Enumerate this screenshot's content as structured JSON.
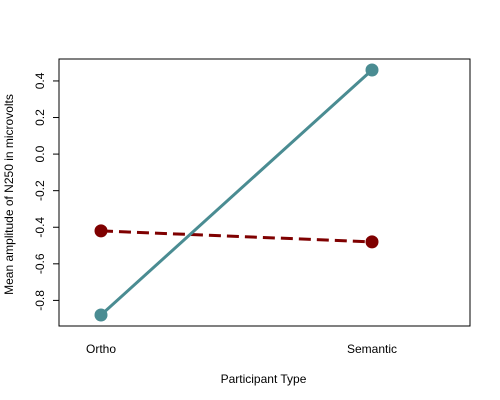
{
  "chart_data": {
    "type": "line",
    "categories": [
      "Ortho",
      "Semantic"
    ],
    "xlabel": "Participant Type",
    "ylabel": "Mean amplitude of N250 in microvolts",
    "ylim": [
      -0.94,
      0.52
    ],
    "yticks": [
      -0.8,
      -0.6,
      -0.4,
      -0.2,
      0.0,
      0.2,
      0.4
    ],
    "ytick_labels": [
      "-0.8",
      "-0.6",
      "-0.4",
      "-0.2",
      "0.0",
      "0.2",
      "0.4"
    ],
    "grid": false,
    "series": [
      {
        "values": [
          -0.42,
          -0.48
        ],
        "color": "#7f0000",
        "style": "dashed"
      },
      {
        "values": [
          -0.88,
          0.46
        ],
        "color": "#4a8c92",
        "style": "solid"
      }
    ]
  }
}
